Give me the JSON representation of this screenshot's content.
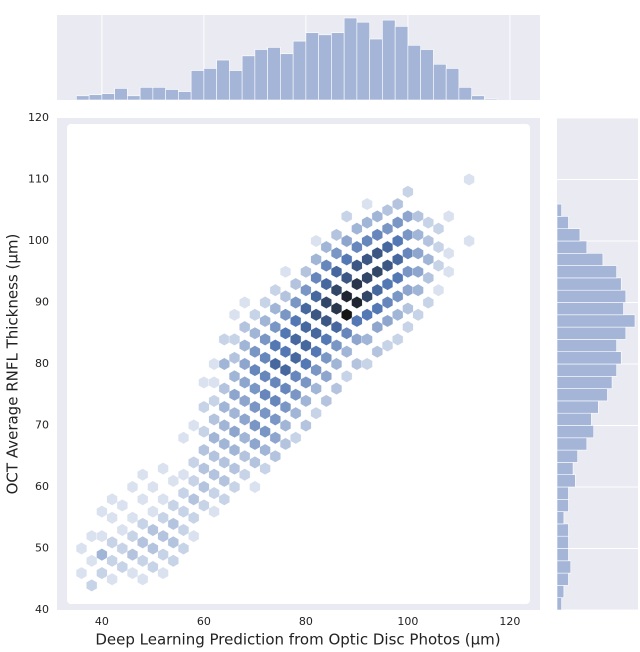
{
  "chart_data": {
    "type": "hexbin",
    "x_label": "Deep Learning Prediction from Optic Disc Photos (μm)",
    "y_label": "OCT Average RNFL Thickness  (μm)",
    "xlim": [
      31.2,
      125.9
    ],
    "ylim": [
      40,
      120
    ],
    "xticks": [
      40,
      60,
      80,
      100,
      120
    ],
    "yticks": [
      40,
      50,
      60,
      70,
      80,
      90,
      100,
      110,
      120
    ],
    "color": "#4c72b0",
    "hist_color": "#a5b5d8",
    "hexbins": [
      {
        "x": 36,
        "y": [
          46,
          50
        ],
        "counts": [
          1,
          1
        ]
      },
      {
        "x": 38,
        "y": [
          44,
          48,
          52
        ],
        "counts": [
          2,
          1,
          1
        ]
      },
      {
        "x": 40,
        "y": [
          46,
          49,
          52,
          56
        ],
        "counts": [
          2,
          4,
          1,
          1
        ]
      },
      {
        "x": 42,
        "y": [
          45,
          48,
          51,
          55,
          58
        ],
        "counts": [
          1,
          2,
          2,
          1,
          1
        ]
      },
      {
        "x": 44,
        "y": [
          47,
          50,
          53,
          57
        ],
        "counts": [
          2,
          2,
          1,
          1
        ]
      },
      {
        "x": 46,
        "y": [
          46,
          49,
          52,
          55,
          60
        ],
        "counts": [
          1,
          3,
          2,
          1,
          1
        ]
      },
      {
        "x": 48,
        "y": [
          45,
          48,
          51,
          54,
          58,
          62
        ],
        "counts": [
          1,
          2,
          3,
          2,
          1,
          1
        ]
      },
      {
        "x": 50,
        "y": [
          47,
          50,
          53,
          56,
          60
        ],
        "counts": [
          2,
          3,
          3,
          1,
          1
        ]
      },
      {
        "x": 52,
        "y": [
          46,
          49,
          52,
          55,
          58,
          63
        ],
        "counts": [
          1,
          2,
          3,
          2,
          1,
          1
        ]
      },
      {
        "x": 54,
        "y": [
          48,
          51,
          54,
          57,
          61
        ],
        "counts": [
          2,
          3,
          3,
          2,
          1
        ]
      },
      {
        "x": 56,
        "y": [
          50,
          53,
          56,
          59,
          62,
          68
        ],
        "counts": [
          2,
          2,
          2,
          2,
          1,
          1
        ]
      },
      {
        "x": 58,
        "y": [
          52,
          55,
          58,
          61,
          64,
          70
        ],
        "counts": [
          1,
          2,
          3,
          2,
          2,
          1
        ]
      },
      {
        "x": 60,
        "y": [
          57,
          60,
          63,
          66,
          69,
          73,
          77
        ],
        "counts": [
          2,
          3,
          3,
          3,
          2,
          2,
          1
        ]
      },
      {
        "x": 62,
        "y": [
          56,
          59,
          62,
          65,
          68,
          71,
          74,
          77,
          80
        ],
        "counts": [
          1,
          2,
          3,
          3,
          4,
          3,
          2,
          1,
          1
        ]
      },
      {
        "x": 64,
        "y": [
          58,
          61,
          64,
          67,
          70,
          73,
          76,
          80,
          84
        ],
        "counts": [
          2,
          3,
          3,
          4,
          4,
          4,
          3,
          4,
          2
        ]
      },
      {
        "x": 66,
        "y": [
          60,
          63,
          66,
          69,
          72,
          75,
          78,
          81,
          84,
          88
        ],
        "counts": [
          2,
          3,
          4,
          5,
          4,
          5,
          4,
          3,
          2,
          1
        ]
      },
      {
        "x": 68,
        "y": [
          62,
          65,
          68,
          71,
          74,
          77,
          80,
          83,
          86,
          90
        ],
        "counts": [
          2,
          3,
          4,
          5,
          5,
          5,
          5,
          4,
          3,
          1
        ]
      },
      {
        "x": 70,
        "y": [
          60,
          64,
          67,
          70,
          73,
          76,
          79,
          82,
          85,
          88
        ],
        "counts": [
          1,
          3,
          5,
          6,
          6,
          6,
          7,
          6,
          4,
          2
        ]
      },
      {
        "x": 72,
        "y": [
          63,
          66,
          69,
          72,
          75,
          78,
          81,
          84,
          87,
          90
        ],
        "counts": [
          2,
          4,
          6,
          6,
          7,
          7,
          7,
          6,
          4,
          2
        ]
      },
      {
        "x": 74,
        "y": [
          65,
          68,
          71,
          74,
          77,
          80,
          83,
          86,
          89,
          92
        ],
        "counts": [
          3,
          5,
          6,
          7,
          7,
          9,
          8,
          6,
          4,
          2
        ]
      },
      {
        "x": 76,
        "y": [
          67,
          70,
          73,
          76,
          79,
          82,
          85,
          88,
          91,
          95
        ],
        "counts": [
          3,
          4,
          6,
          7,
          9,
          8,
          8,
          6,
          3,
          1
        ]
      },
      {
        "x": 78,
        "y": [
          68,
          72,
          75,
          78,
          81,
          84,
          87,
          90,
          93
        ],
        "counts": [
          2,
          4,
          6,
          7,
          9,
          9,
          8,
          6,
          3
        ]
      },
      {
        "x": 80,
        "y": [
          70,
          74,
          77,
          80,
          83,
          86,
          89,
          92,
          95
        ],
        "counts": [
          3,
          4,
          6,
          8,
          9,
          9,
          9,
          6,
          3
        ]
      },
      {
        "x": 82,
        "y": [
          72,
          76,
          79,
          82,
          85,
          88,
          91,
          94,
          97,
          100
        ],
        "counts": [
          2,
          4,
          6,
          8,
          9,
          10,
          9,
          7,
          4,
          1
        ]
      },
      {
        "x": 84,
        "y": [
          74,
          78,
          81,
          84,
          87,
          90,
          93,
          96,
          99
        ],
        "counts": [
          3,
          5,
          6,
          8,
          10,
          11,
          9,
          7,
          4
        ]
      },
      {
        "x": 86,
        "y": [
          76,
          80,
          83,
          86,
          89,
          92,
          95,
          98,
          101
        ],
        "counts": [
          3,
          4,
          6,
          9,
          12,
          11,
          9,
          6,
          3
        ]
      },
      {
        "x": 88,
        "y": [
          78,
          82,
          85,
          88,
          91,
          94,
          97,
          100,
          104
        ],
        "counts": [
          2,
          4,
          7,
          14,
          13,
          10,
          8,
          5,
          2
        ]
      },
      {
        "x": 90,
        "y": [
          80,
          84,
          87,
          90,
          93,
          96,
          99,
          102
        ],
        "counts": [
          3,
          5,
          8,
          13,
          12,
          10,
          7,
          4
        ]
      },
      {
        "x": 92,
        "y": [
          80,
          84,
          88,
          91,
          94,
          97,
          100,
          103,
          106
        ],
        "counts": [
          2,
          4,
          8,
          11,
          11,
          10,
          7,
          4,
          1
        ]
      },
      {
        "x": 94,
        "y": [
          82,
          86,
          89,
          92,
          95,
          98,
          101,
          104
        ],
        "counts": [
          3,
          5,
          8,
          9,
          11,
          10,
          7,
          4
        ]
      },
      {
        "x": 96,
        "y": [
          83,
          87,
          90,
          93,
          96,
          99,
          102,
          105
        ],
        "counts": [
          2,
          5,
          7,
          8,
          10,
          9,
          6,
          3
        ]
      },
      {
        "x": 98,
        "y": [
          84,
          88,
          91,
          94,
          97,
          100,
          103,
          106
        ],
        "counts": [
          2,
          4,
          6,
          8,
          9,
          8,
          6,
          3
        ]
      },
      {
        "x": 100,
        "y": [
          86,
          89,
          92,
          95,
          98,
          101,
          104,
          108
        ],
        "counts": [
          2,
          3,
          5,
          6,
          7,
          6,
          5,
          2
        ]
      },
      {
        "x": 102,
        "y": [
          88,
          92,
          95,
          98,
          101,
          104
        ],
        "counts": [
          2,
          4,
          5,
          5,
          4,
          3
        ]
      },
      {
        "x": 104,
        "y": [
          90,
          94,
          97,
          100,
          103
        ],
        "counts": [
          2,
          3,
          4,
          3,
          2
        ]
      },
      {
        "x": 106,
        "y": [
          92,
          96,
          99,
          102
        ],
        "counts": [
          1,
          2,
          2,
          2
        ]
      },
      {
        "x": 108,
        "y": [
          95,
          98,
          104
        ],
        "counts": [
          1,
          1,
          1
        ]
      },
      {
        "x": 112,
        "y": [
          100,
          110
        ],
        "counts": [
          1,
          1
        ]
      }
    ],
    "x_hist": {
      "bins": [
        35,
        37.5,
        40,
        42.5,
        45,
        47.5,
        50,
        52.5,
        55,
        57.5,
        60,
        62.5,
        65,
        67.5,
        70,
        72.5,
        75,
        77.5,
        80,
        82.5,
        85,
        87.5,
        90,
        92.5,
        95,
        97.5,
        100,
        102.5,
        105,
        107.5,
        110,
        112.5,
        115,
        117.5
      ],
      "counts": [
        4,
        5,
        6,
        11,
        4,
        12,
        12,
        10,
        8,
        28,
        30,
        38,
        28,
        42,
        48,
        50,
        44,
        56,
        64,
        62,
        64,
        78,
        74,
        58,
        76,
        70,
        52,
        48,
        34,
        30,
        12,
        4,
        1
      ]
    },
    "y_hist": {
      "bins": [
        40,
        42,
        44,
        46,
        48,
        50,
        52,
        54,
        56,
        58,
        60,
        62,
        64,
        66,
        68,
        70,
        72,
        74,
        76,
        78,
        80,
        82,
        84,
        86,
        88,
        90,
        92,
        94,
        96,
        98,
        100,
        102,
        104,
        106
      ],
      "counts": [
        2,
        3,
        5,
        6,
        5,
        5,
        5,
        3,
        5,
        5,
        8,
        7,
        9,
        13,
        16,
        15,
        18,
        22,
        24,
        26,
        28,
        26,
        30,
        34,
        29,
        30,
        28,
        26,
        20,
        13,
        10,
        5,
        2
      ]
    }
  }
}
